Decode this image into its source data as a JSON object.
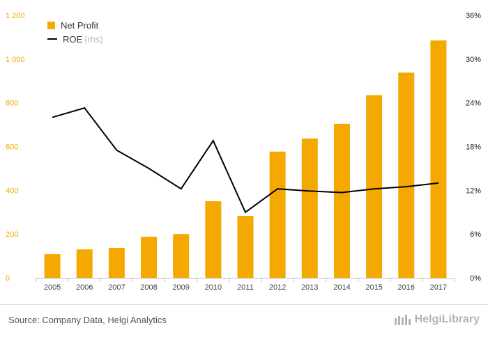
{
  "chart_data": {
    "type": "bar",
    "categories": [
      "2005",
      "2006",
      "2007",
      "2008",
      "2009",
      "2010",
      "2011",
      "2012",
      "2013",
      "2014",
      "2015",
      "2016",
      "2017"
    ],
    "series": [
      {
        "name": "Net Profit",
        "type": "bar",
        "axis": "left",
        "values": [
          108,
          130,
          137,
          188,
          200,
          350,
          283,
          577,
          637,
          704,
          835,
          938,
          1085
        ]
      },
      {
        "name": "ROE",
        "type": "line",
        "axis": "right",
        "values": [
          22.0,
          23.3,
          17.5,
          15.0,
          12.2,
          18.8,
          9.0,
          12.2,
          11.9,
          11.7,
          12.2,
          12.5,
          13.0
        ]
      }
    ],
    "yaxis_left": {
      "ticks": [
        0,
        200,
        400,
        600,
        800,
        1000,
        1200
      ],
      "tick_labels": [
        "0",
        "200",
        "400",
        "600",
        "800",
        "1 000",
        "1 200"
      ],
      "ylim": [
        0,
        1200
      ]
    },
    "yaxis_right": {
      "ticks": [
        0,
        6,
        12,
        18,
        24,
        30,
        36
      ],
      "tick_labels": [
        "0%",
        "6%",
        "12%",
        "18%",
        "24%",
        "30%",
        "36%"
      ],
      "ylim": [
        0,
        36
      ]
    },
    "grid": false,
    "legend_position": "top-left"
  },
  "legend": {
    "items": [
      {
        "label": "Net Profit",
        "note": ""
      },
      {
        "label": "ROE",
        "note": "(rhs)"
      }
    ]
  },
  "footer": {
    "source": "Source: Company Data, Helgi Analytics",
    "brand": "HelgiLibrary"
  },
  "colors": {
    "bar": "#F5A800",
    "line": "#000000",
    "left_axis_text": "#F5A800",
    "right_axis_text": "#222222",
    "category_text": "#444444"
  }
}
